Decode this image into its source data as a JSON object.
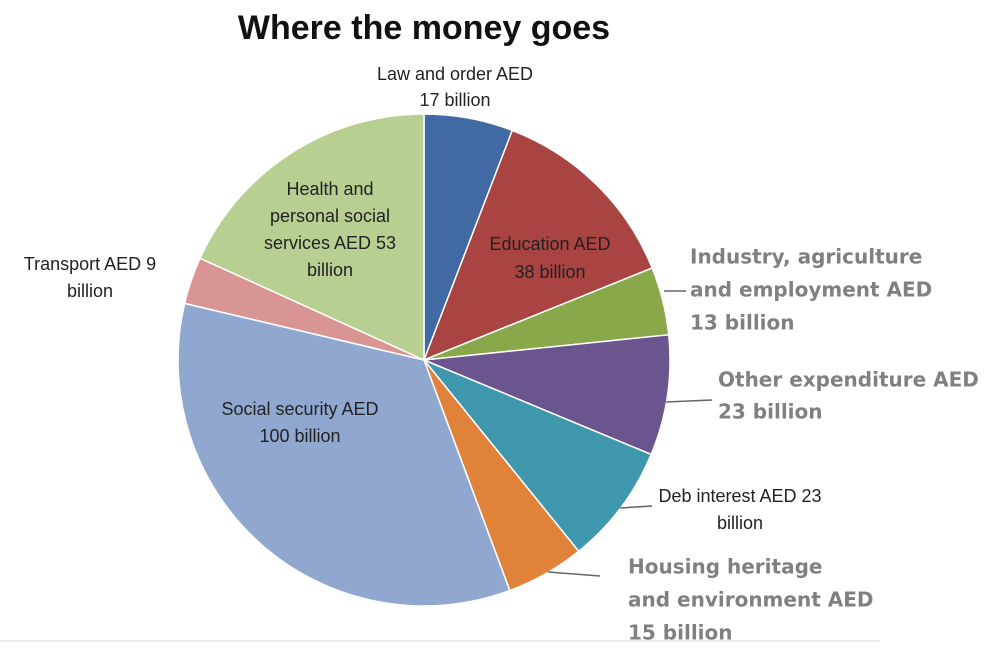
{
  "chart_data": {
    "type": "pie",
    "title": "Where the money goes",
    "categories": [
      [
        "Law and order AED",
        "17 billion"
      ],
      [
        "Education AED",
        "38 billion"
      ],
      [
        "Industry, agriculture",
        "and employment AED",
        "13 billion"
      ],
      [
        "Other expenditure AED",
        "23 billion"
      ],
      [
        "Deb interest AED 23",
        "billion"
      ],
      [
        "Housing heritage",
        "and environment AED",
        "15 billion"
      ],
      [
        "Social security AED",
        "100 billion"
      ],
      [
        "Transport AED 9",
        "billion"
      ],
      [
        "Health and",
        "personal social",
        "services AED 53",
        "billion"
      ]
    ],
    "values": [
      17,
      38,
      13,
      23,
      23,
      15,
      100,
      9,
      53
    ],
    "colors": [
      "#4169a3",
      "#a94442",
      "#88a84a",
      "#6b558f",
      "#3e97ad",
      "#e0823a",
      "#90a8d0",
      "#d99594",
      "#b8cf92"
    ]
  }
}
